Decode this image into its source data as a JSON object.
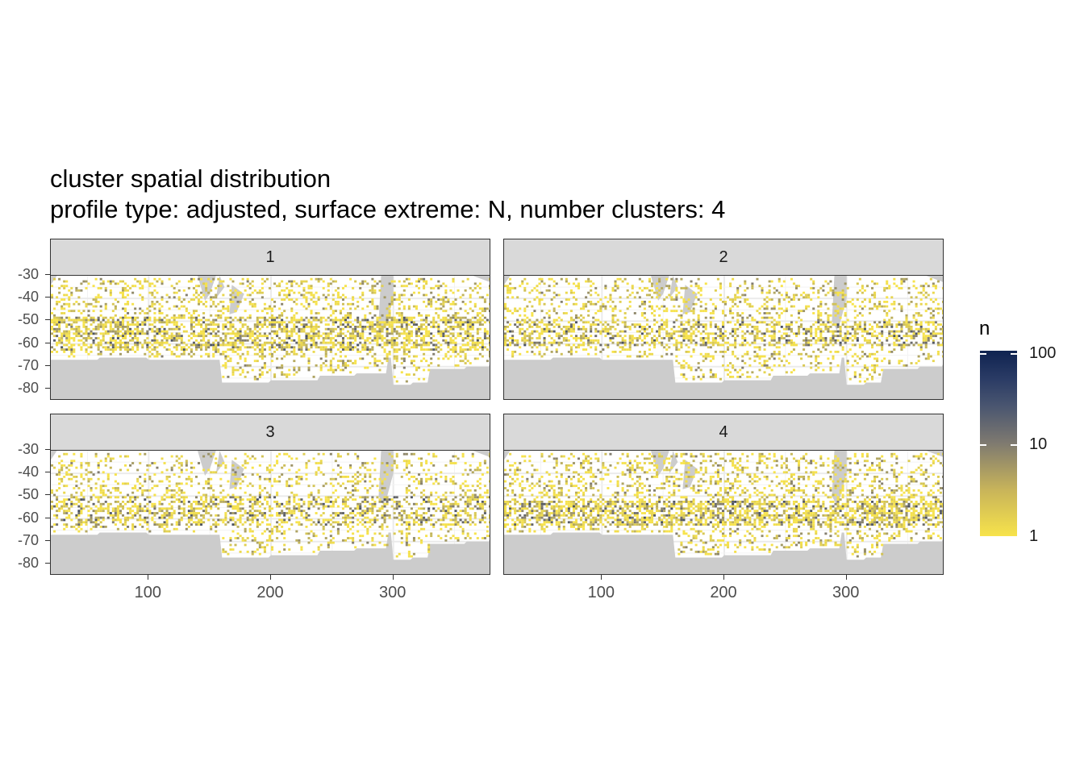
{
  "chart_data": {
    "type": "heatmap",
    "title": "cluster spatial distribution",
    "subtitle": "profile type: adjusted, surface extreme: N, number clusters: 4",
    "xlim": [
      20,
      380
    ],
    "ylim": [
      -85,
      -30
    ],
    "x_ticks": [
      "100",
      "200",
      "300"
    ],
    "y_ticks": [
      "-30",
      "-40",
      "-50",
      "-60",
      "-70",
      "-80"
    ],
    "legend": {
      "title": "n",
      "scale": "log",
      "labels": [
        "100",
        "10",
        "1"
      ],
      "color_low": "#f7e34b",
      "color_mid": "#7f7a70",
      "color_high": "#0f2350",
      "placement": "right"
    },
    "land_color": "#cccccc",
    "facets": [
      {
        "label": "1",
        "band_lat": [
          -62,
          -48
        ],
        "density": 0.55
      },
      {
        "label": "2",
        "band_lat": [
          -60,
          -50
        ],
        "density": 0.5
      },
      {
        "label": "3",
        "band_lat": [
          -62,
          -50
        ],
        "density": 0.45
      },
      {
        "label": "4",
        "band_lat": [
          -62,
          -52
        ],
        "density": 0.6
      }
    ]
  }
}
